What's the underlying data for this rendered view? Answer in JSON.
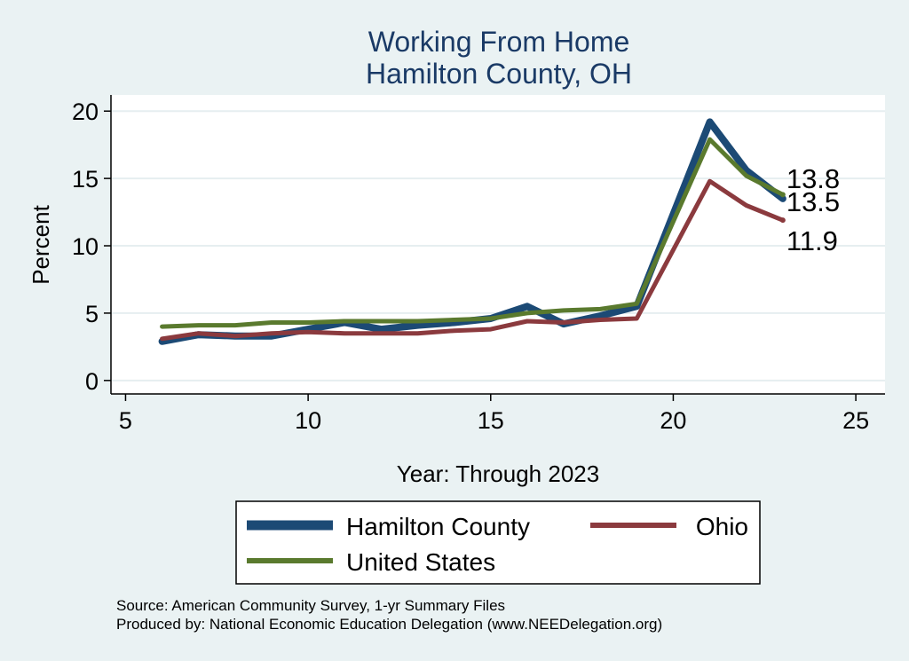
{
  "chart_data": {
    "type": "line",
    "title": "Working From Home",
    "subtitle": "Hamilton County, OH",
    "xlabel": "Year: Through 2023",
    "ylabel": "Percent",
    "xlim": [
      4.6,
      25.8
    ],
    "ylim": [
      -1.0,
      21.2
    ],
    "x_ticks": [
      5,
      10,
      15,
      20,
      25
    ],
    "y_ticks": [
      0,
      5,
      10,
      15,
      20
    ],
    "grid": true,
    "legend_position": "bottom",
    "x": [
      6,
      7,
      8,
      9,
      10,
      11,
      12,
      13,
      14,
      15,
      16,
      17,
      18,
      19,
      21,
      22,
      23
    ],
    "series": [
      {
        "name": "Hamilton County",
        "color": "#1c4a75",
        "values": [
          2.9,
          3.4,
          3.3,
          3.3,
          3.8,
          4.3,
          3.8,
          4.1,
          4.3,
          4.6,
          5.5,
          4.2,
          4.8,
          5.5,
          19.2,
          15.6,
          13.5
        ],
        "end_label": "13.5"
      },
      {
        "name": "Ohio",
        "color": "#8b3a3e",
        "values": [
          3.1,
          3.5,
          3.3,
          3.5,
          3.6,
          3.5,
          3.5,
          3.5,
          3.7,
          3.8,
          4.4,
          4.3,
          4.5,
          4.6,
          14.8,
          13.0,
          11.9
        ],
        "end_label": "11.9"
      },
      {
        "name": "United States",
        "color": "#5a7a2e",
        "values": [
          4.0,
          4.1,
          4.1,
          4.3,
          4.3,
          4.4,
          4.4,
          4.4,
          4.5,
          4.6,
          5.0,
          5.2,
          5.3,
          5.7,
          17.9,
          15.2,
          13.8
        ],
        "end_label": "13.8"
      }
    ],
    "notes": [
      "Source: American Community Survey, 1-yr Summary Files",
      "Produced by: National Economic Education Delegation (www.NEEDelegation.org)"
    ]
  }
}
